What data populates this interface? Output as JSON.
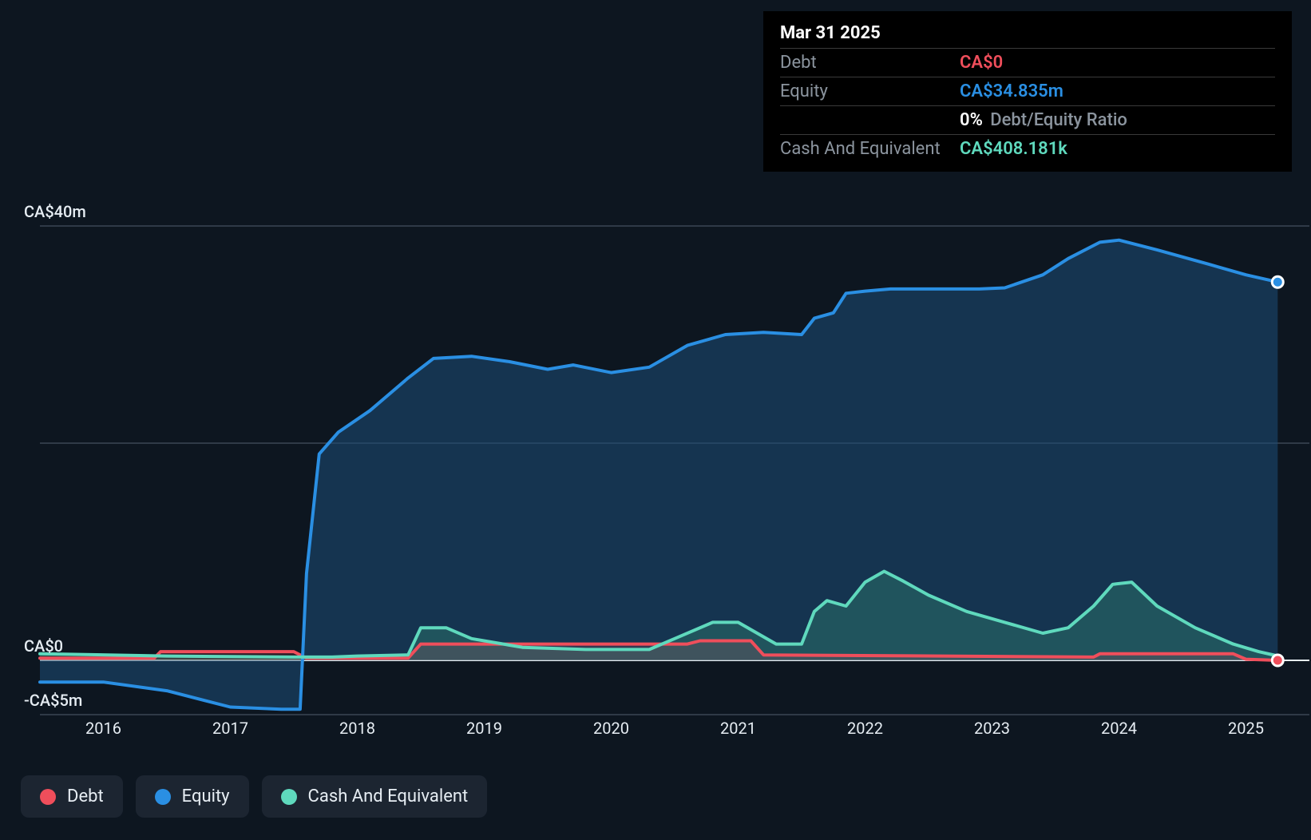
{
  "chart": {
    "type": "area-line",
    "background_color": "#0d1620",
    "grid_color": "#3b4654",
    "axis_line_color": "#b9c0c7",
    "baseline_color": "#e6edf3",
    "line_width": 4,
    "font": {
      "axis_size": 20,
      "tooltip_size": 22,
      "legend_size": 22,
      "family": "system-ui"
    },
    "y": {
      "min": -5,
      "max": 45,
      "ticks": [
        {
          "v": 40,
          "label": "CA$40m"
        },
        {
          "v": 20,
          "label": ""
        },
        {
          "v": 0,
          "label": "CA$0"
        },
        {
          "v": -5,
          "label": "-CA$5m"
        }
      ],
      "label_color": "#e6edf3"
    },
    "x": {
      "min": 2015.5,
      "max": 2025.5,
      "ticks": [
        2016,
        2017,
        2018,
        2019,
        2020,
        2021,
        2022,
        2023,
        2024,
        2025
      ],
      "label_color": "#e6edf3"
    },
    "series": {
      "debt": {
        "label": "Debt",
        "color": "#ef4e5b",
        "fill": "#ef4e5b",
        "fill_opacity": 0.15,
        "points": [
          [
            2015.5,
            0.2
          ],
          [
            2016.4,
            0.2
          ],
          [
            2016.45,
            0.8
          ],
          [
            2017.5,
            0.8
          ],
          [
            2017.6,
            0.2
          ],
          [
            2018.4,
            0.2
          ],
          [
            2018.5,
            1.5
          ],
          [
            2020.6,
            1.5
          ],
          [
            2020.7,
            1.8
          ],
          [
            2021.1,
            1.8
          ],
          [
            2021.2,
            0.5
          ],
          [
            2023.8,
            0.3
          ],
          [
            2023.85,
            0.6
          ],
          [
            2024.9,
            0.6
          ],
          [
            2025.0,
            0.1
          ],
          [
            2025.25,
            0.0
          ]
        ]
      },
      "equity": {
        "label": "Equity",
        "color": "#2a8fe3",
        "fill": "#1e4e78",
        "fill_opacity": 0.55,
        "points": [
          [
            2015.5,
            -2.0
          ],
          [
            2016.0,
            -2.0
          ],
          [
            2016.5,
            -2.8
          ],
          [
            2017.0,
            -4.3
          ],
          [
            2017.4,
            -4.5
          ],
          [
            2017.55,
            -4.5
          ],
          [
            2017.6,
            8.0
          ],
          [
            2017.7,
            19.0
          ],
          [
            2017.85,
            21.0
          ],
          [
            2018.1,
            23.0
          ],
          [
            2018.4,
            26.0
          ],
          [
            2018.6,
            27.8
          ],
          [
            2018.9,
            28.0
          ],
          [
            2019.2,
            27.5
          ],
          [
            2019.5,
            26.8
          ],
          [
            2019.7,
            27.2
          ],
          [
            2020.0,
            26.5
          ],
          [
            2020.3,
            27.0
          ],
          [
            2020.6,
            29.0
          ],
          [
            2020.9,
            30.0
          ],
          [
            2021.2,
            30.2
          ],
          [
            2021.5,
            30.0
          ],
          [
            2021.6,
            31.5
          ],
          [
            2021.75,
            32.0
          ],
          [
            2021.85,
            33.8
          ],
          [
            2022.0,
            34.0
          ],
          [
            2022.2,
            34.2
          ],
          [
            2022.9,
            34.2
          ],
          [
            2023.1,
            34.3
          ],
          [
            2023.4,
            35.5
          ],
          [
            2023.6,
            37.0
          ],
          [
            2023.85,
            38.5
          ],
          [
            2024.0,
            38.7
          ],
          [
            2024.3,
            37.8
          ],
          [
            2024.7,
            36.5
          ],
          [
            2025.0,
            35.5
          ],
          [
            2025.25,
            34.835
          ]
        ]
      },
      "cash": {
        "label": "Cash And Equivalent",
        "color": "#5fd9bd",
        "fill": "#2f7c6c",
        "fill_opacity": 0.45,
        "points": [
          [
            2015.5,
            0.6
          ],
          [
            2016.5,
            0.4
          ],
          [
            2017.5,
            0.3
          ],
          [
            2017.8,
            0.3
          ],
          [
            2018.0,
            0.4
          ],
          [
            2018.4,
            0.5
          ],
          [
            2018.5,
            3.0
          ],
          [
            2018.7,
            3.0
          ],
          [
            2018.9,
            2.0
          ],
          [
            2019.3,
            1.2
          ],
          [
            2019.8,
            1.0
          ],
          [
            2020.3,
            1.0
          ],
          [
            2020.5,
            2.0
          ],
          [
            2020.8,
            3.5
          ],
          [
            2021.0,
            3.5
          ],
          [
            2021.3,
            1.5
          ],
          [
            2021.5,
            1.5
          ],
          [
            2021.6,
            4.5
          ],
          [
            2021.7,
            5.5
          ],
          [
            2021.85,
            5.0
          ],
          [
            2022.0,
            7.2
          ],
          [
            2022.15,
            8.2
          ],
          [
            2022.3,
            7.3
          ],
          [
            2022.5,
            6.0
          ],
          [
            2022.8,
            4.5
          ],
          [
            2023.1,
            3.5
          ],
          [
            2023.4,
            2.5
          ],
          [
            2023.6,
            3.0
          ],
          [
            2023.8,
            5.0
          ],
          [
            2023.95,
            7.0
          ],
          [
            2024.1,
            7.2
          ],
          [
            2024.3,
            5.0
          ],
          [
            2024.6,
            3.0
          ],
          [
            2024.9,
            1.5
          ],
          [
            2025.1,
            0.8
          ],
          [
            2025.25,
            0.408
          ]
        ]
      }
    },
    "end_markers": [
      {
        "series": "equity",
        "x": 2025.25,
        "y": 34.835,
        "fill": "#2a8fe3",
        "stroke": "#ffffff"
      },
      {
        "series": "debt",
        "x": 2025.25,
        "y": 0.0,
        "fill": "#ef4e5b",
        "stroke": "#ffffff"
      }
    ],
    "marker_radius": 7
  },
  "tooltip": {
    "date": "Mar 31 2025",
    "rows": [
      {
        "label": "Debt",
        "value": "CA$0",
        "color": "#ef4e5b"
      },
      {
        "label": "Equity",
        "value": "CA$34.835m",
        "color": "#2a8fe3"
      },
      {
        "label": "",
        "value": "0%",
        "suffix": "Debt/Equity Ratio",
        "color": "#ffffff"
      },
      {
        "label": "Cash And Equivalent",
        "value": "CA$408.181k",
        "color": "#5fd9bd"
      }
    ],
    "bg": "#000000",
    "label_color": "#8b949e",
    "divider_color": "#3a3a3a"
  },
  "legend": {
    "bg": "#1c2531",
    "text_color": "#e6edf3",
    "items": [
      {
        "key": "debt",
        "label": "Debt",
        "color": "#ef4e5b"
      },
      {
        "key": "equity",
        "label": "Equity",
        "color": "#2a8fe3"
      },
      {
        "key": "cash",
        "label": "Cash And Equivalent",
        "color": "#5fd9bd"
      }
    ]
  }
}
